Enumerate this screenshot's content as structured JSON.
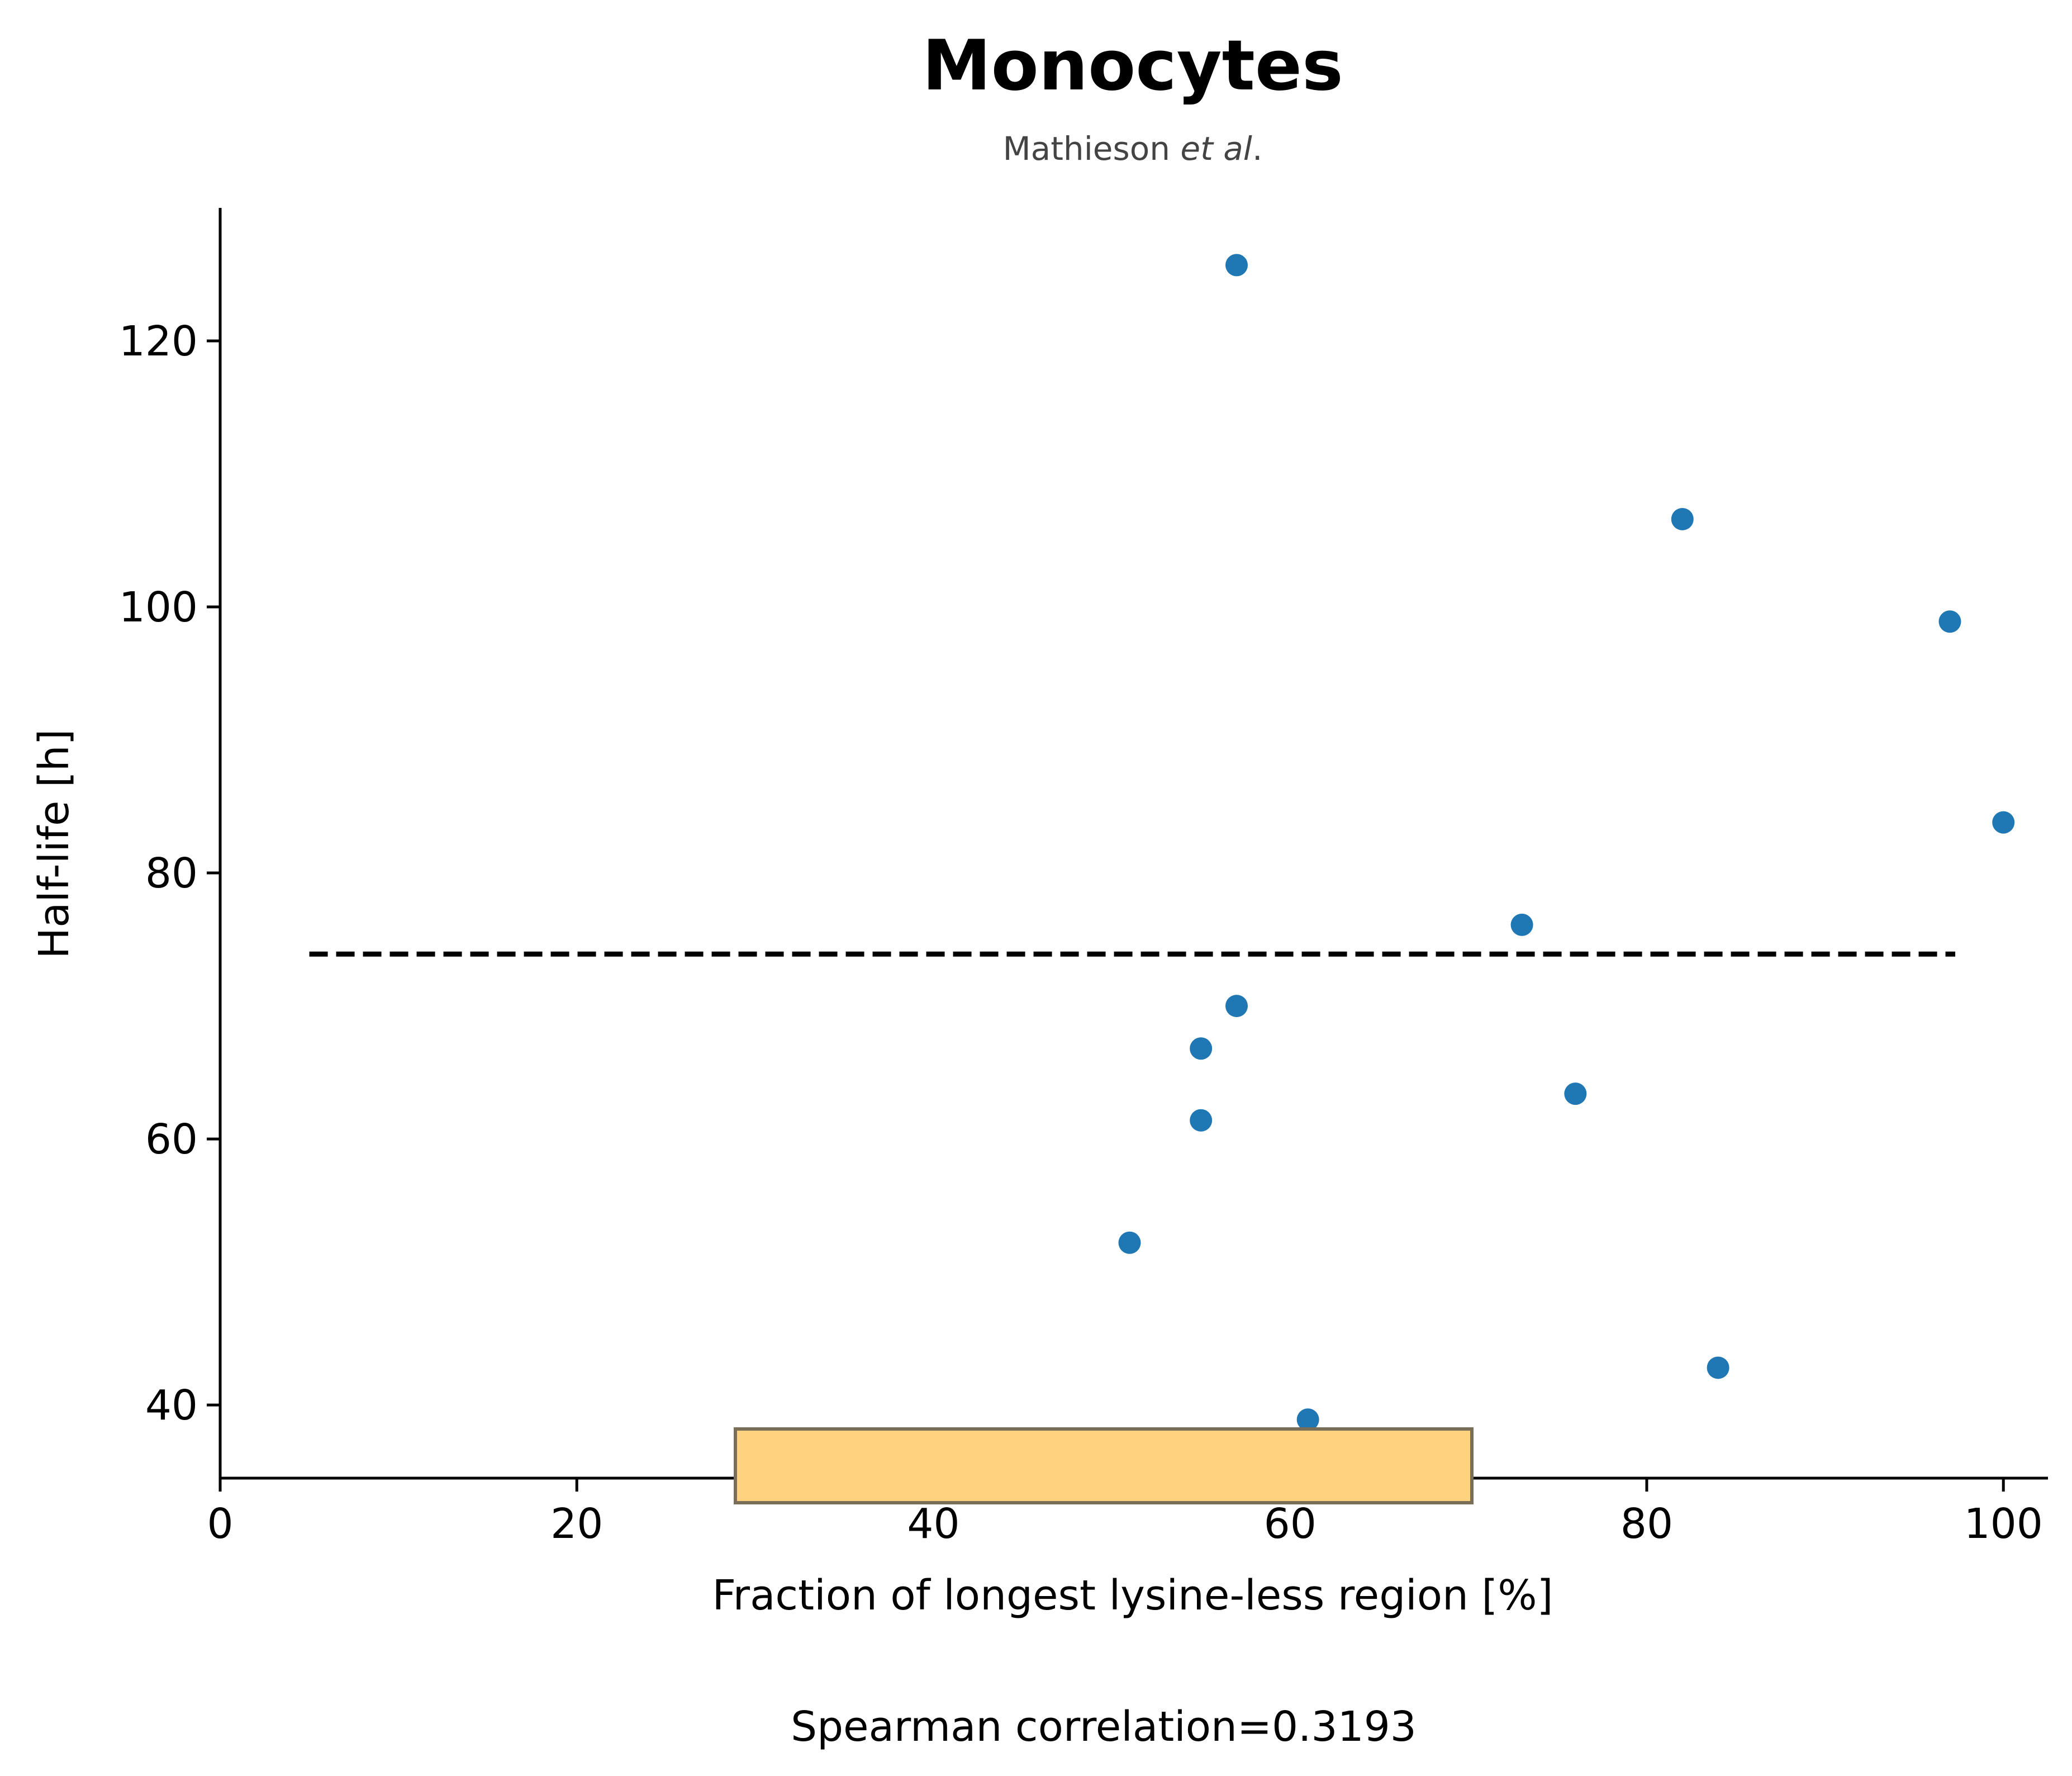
{
  "chart_data": {
    "type": "scatter",
    "title": "Monocytes",
    "subtitle": {
      "prefix": "Mathieson ",
      "italic": "et al",
      "suffix": "."
    },
    "xlabel": "Fraction of longest lysine-less region [%]",
    "ylabel": "Half-life [h]",
    "xlim": [
      0,
      102.5
    ],
    "ylim": [
      34.5,
      130
    ],
    "xticks": [
      0,
      20,
      40,
      60,
      80,
      100
    ],
    "yticks": [
      40,
      60,
      80,
      100,
      120
    ],
    "grid": false,
    "series": [
      {
        "marker_color": "#1f77b4",
        "points": [
          {
            "x": 57,
            "y": 125.7
          },
          {
            "x": 82,
            "y": 106.6
          },
          {
            "x": 97,
            "y": 98.9
          },
          {
            "x": 100,
            "y": 83.8
          },
          {
            "x": 73,
            "y": 76.1
          },
          {
            "x": 57,
            "y": 70.0
          },
          {
            "x": 55,
            "y": 66.8
          },
          {
            "x": 76,
            "y": 63.4
          },
          {
            "x": 55,
            "y": 61.4
          },
          {
            "x": 51,
            "y": 52.2
          },
          {
            "x": 84,
            "y": 42.8
          },
          {
            "x": 61,
            "y": 38.9
          }
        ]
      }
    ],
    "reference_line": {
      "style": "dashed",
      "color": "#000000",
      "x": [
        5,
        97.3
      ],
      "y": [
        73.9,
        73.9
      ]
    },
    "annotation": {
      "text": "Spearman correlation=0.3193",
      "background": "#ffd280",
      "border": "#7a6e59",
      "placement": "bottom-center"
    }
  }
}
